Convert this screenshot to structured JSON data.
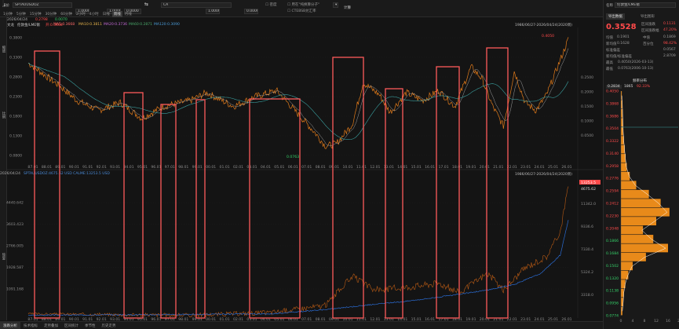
{
  "toolbar": {
    "symbol": "SPTAUUSDOZ",
    "instrument": "CA",
    "field_value_1": "1.0000",
    "field_value_2": "1.0000",
    "field_value_3": "0.0000",
    "field_value_4": "1.0000",
    "field_value_5": "0.0000",
    "check_1": "密度",
    "check_2": "用在\"纯换算分子\"",
    "check_3": "CTEBSB兑汇率",
    "calc_button": "计算",
    "left_label": "报价",
    "tabs": [
      "1分钟",
      "5分钟",
      "15分钟",
      "30分钟",
      "60分钟",
      "2小时",
      "4小时",
      "日线",
      "周线",
      "月线"
    ],
    "active_tab": "周线"
  },
  "left_sidebar": [
    "缩放",
    "比例",
    "恢复"
  ],
  "upper_pane": {
    "date": "2026/04/24",
    "series_name": "伦敦金/LME锡",
    "open": "开:0.3668",
    "ma5": "MA5:0.3668",
    "ma10": "MA10:0.3811",
    "ma20": "MA20:0.3736",
    "ma60": "MA60:0.2871",
    "ma120": "MA120:0.3090",
    "change_text": "0.2798",
    "pct_text": "0.0070",
    "range": "1986/06/27-2026/04/24(2020周)",
    "y_ticks": [
      "0.3800",
      "0.3300",
      "0.2800",
      "0.2300",
      "0.1800",
      "0.1300",
      "0.0800"
    ],
    "right_ticks": [
      "0.2500",
      "0.2000",
      "0.1500",
      "0.1000",
      "0.0500"
    ],
    "high_label": "0.4050",
    "low_label": "0.0763",
    "title": "文龙"
  },
  "lower_pane": {
    "date": "2026/04/24",
    "legend": "SPTAUUSDOZ:4675.62  USD  CALME:13253.5  USD",
    "range": "1986/06/27-2026/04/24(2020周)",
    "y_ticks": [
      "4440.642",
      "3603.423",
      "2766.005",
      "1928.587",
      "1091.168"
    ],
    "right_ticks": [
      "11342.0",
      "9336.6",
      "7330.4",
      "5324.2",
      "3318.0"
    ],
    "last_red": "13253.5",
    "last_white": "4675.62"
  },
  "x_ticks": [
    "87.01",
    "88.01",
    "89.01",
    "90.01",
    "91.01",
    "92.01",
    "93.01",
    "94.01",
    "95.01",
    "96.01",
    "97.01",
    "98.01",
    "99.01",
    "00.01",
    "01.01",
    "02.01",
    "03.01",
    "04.01",
    "05.01",
    "06.01",
    "07.01",
    "08.01",
    "09.01",
    "10.01",
    "11.01",
    "12.01",
    "13.01",
    "14.01",
    "15.01",
    "16.01",
    "17.01",
    "18.01",
    "19.01",
    "20.01",
    "21.01",
    "22.01",
    "23.01",
    "24.01",
    "25.01",
    "26.01"
  ],
  "bottom_tabs": [
    "涨跌分析",
    "技术指标",
    "走势叠加",
    "区间统计",
    "季节性",
    "历史走势"
  ],
  "right_panel": {
    "title": "伦敦金/LME锡",
    "name_label": "名称",
    "tab_1": "导出数据",
    "tab_2": "导出图形",
    "price": "0.3528",
    "interval_change_label": "区间涨跌",
    "interval_change": "0.1131",
    "interval_pct_label": "区间涨跌幅",
    "interval_pct": "47.20%",
    "stats": [
      {
        "k": "均值",
        "v": "0.1901",
        "k2": "中值",
        "v2": "0.1869"
      },
      {
        "k": "新均值",
        "v": "0.1628",
        "k2": "百分位",
        "v2": "98.42%"
      },
      {
        "k": "标准偏差",
        "v": "",
        "k2": "",
        "v2": "0.0567"
      },
      {
        "k": "新均值/标准偏差",
        "v": "",
        "k2": "",
        "v2": "2.8709"
      },
      {
        "k": "最高",
        "v": "0.4050(2026-03-13)",
        "k2": "",
        "v2": ""
      },
      {
        "k": "最低",
        "v": "0.0763(2006-10-13)",
        "k2": "",
        "v2": ""
      }
    ],
    "dist_title": "频率分布",
    "dist_header_value": "0.2834",
    "dist_header_count": "1865",
    "dist_header_pct": "92.33%",
    "dist_y_labels": [
      "0.4050",
      "0.3868",
      "0.3686",
      "0.3504",
      "0.3322",
      "0.3140",
      "0.2958",
      "0.2776",
      "0.2594",
      "0.2412",
      "0.2230",
      "0.2048",
      "0.1866",
      "0.1684",
      "0.1502",
      "0.1320",
      "0.1138",
      "0.0956",
      "0.0774"
    ],
    "dist_x_labels": [
      "0",
      "4",
      "8",
      "12",
      "16",
      "20"
    ],
    "dist_values": [
      0.3,
      0.5,
      0.6,
      0.7,
      0.8,
      1.0,
      1.3,
      1.6,
      2.0,
      3.0,
      5.2,
      9.5,
      13.5,
      16.5,
      12.0,
      7.5,
      11.0,
      16.0,
      8.5,
      4.0,
      2.5,
      1.5,
      1.0,
      0.8,
      0.5
    ]
  },
  "colors": {
    "up": "#ff4a4a",
    "down": "#35d46a",
    "price_line": "#ff8c1a",
    "ma": "#3aa0a0",
    "lower_blue": "#2a6ad0",
    "lower_orange": "#c05a10",
    "box": "#ff5a5a"
  }
}
